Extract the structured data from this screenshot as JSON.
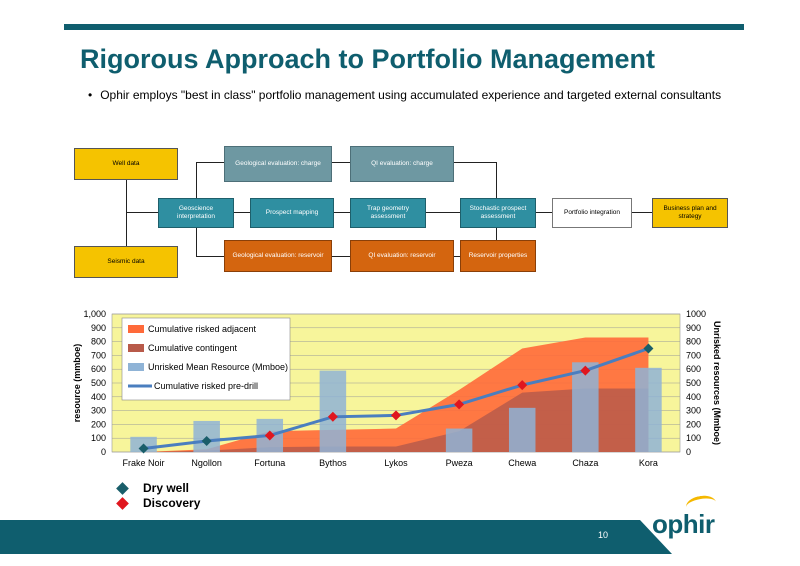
{
  "slide": {
    "title": "Rigorous Approach to Portfolio Management",
    "bullet": "Ophir employs \"best in class\" portfolio management using accumulated experience and targeted external consultants",
    "page_number": "10",
    "logo_text": "ophir"
  },
  "flow": {
    "well_data": "Well data",
    "seismic_data": "Seismic data",
    "geoscience_interpretation": "Geoscience interpretation",
    "prospect_mapping": "Prospect mapping",
    "trap_geometry": "Trap geometry assessment",
    "geo_eval_charge": "Geological evaluation: charge",
    "qi_eval_charge": "QI evaluation: charge",
    "geo_eval_reservoir": "Geological evaluation: reservoir",
    "qi_eval_reservoir": "QI evaluation: reservoir",
    "stochastic": "Stochastic prospect assessment",
    "reservoir_properties": "Reservoir properties",
    "portfolio_integration": "Portfolio integration",
    "business_plan": "Business plan and strategy"
  },
  "legend_marks": {
    "dry_well": "Dry well",
    "discovery": "Discovery"
  },
  "colors": {
    "brand": "#0f5e6e",
    "dry_well": "#1a5e6a",
    "discovery": "#e0161e",
    "plot_bg": "#f7f59b"
  },
  "chart_data": {
    "type": "bar",
    "categories": [
      "Frake Noir",
      "Ngollon",
      "Fortuna",
      "Bythos",
      "Lykos",
      "Pweza",
      "Chewa",
      "Chaza",
      "Kora"
    ],
    "ylabel": "resource (mmboe)",
    "y2label": "Unrisked resources (Mmboe)",
    "ylim": [
      0,
      1000
    ],
    "y2lim": [
      0,
      1000
    ],
    "yticks": [
      "0",
      "100",
      "200",
      "300",
      "400",
      "500",
      "600",
      "700",
      "800",
      "900",
      "1,000"
    ],
    "y2ticks": [
      "0",
      "100",
      "200",
      "300",
      "400",
      "500",
      "600",
      "700",
      "800",
      "900",
      "1000"
    ],
    "grid": true,
    "legend_position": "top-left",
    "series": [
      {
        "name": "Cumulative risked adjacent",
        "type": "area",
        "color": "#ff6a3a",
        "values": [
          0,
          20,
          150,
          160,
          170,
          450,
          750,
          830,
          830
        ]
      },
      {
        "name": "Cumulative contingent",
        "type": "area",
        "color": "#b85a4a",
        "values": [
          0,
          10,
          35,
          40,
          40,
          150,
          430,
          460,
          460
        ]
      },
      {
        "name": "Unrisked Mean Resource (Mmboe)",
        "type": "bar",
        "axis": "right",
        "color": "#8fb3d6",
        "values": [
          110,
          225,
          240,
          590,
          0,
          170,
          320,
          650,
          610
        ]
      },
      {
        "name": "Cumulative risked pre-drill",
        "type": "line",
        "color": "#4a7ebf",
        "values": [
          25,
          80,
          120,
          255,
          265,
          345,
          485,
          590,
          750
        ]
      }
    ],
    "point_markers": [
      "dry",
      "dry",
      "discovery",
      "discovery",
      "discovery",
      "discovery",
      "discovery",
      "discovery",
      "dry"
    ]
  }
}
